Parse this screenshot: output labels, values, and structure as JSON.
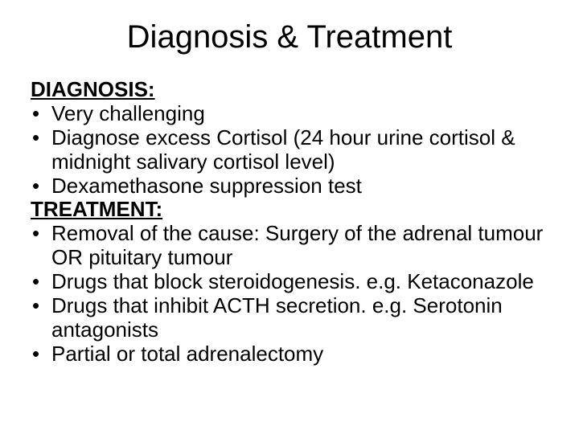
{
  "title": "Diagnosis & Treatment",
  "sections": [
    {
      "heading": "DIAGNOSIS:",
      "bullets": [
        "Very challenging",
        "Diagnose excess Cortisol (24 hour urine cortisol & midnight salivary cortisol level)",
        "Dexamethasone suppression test"
      ]
    },
    {
      "heading": "TREATMENT:",
      "bullets": [
        "Removal of the cause: Surgery of the adrenal tumour OR pituitary tumour",
        "Drugs that block steroidogenesis. e.g. Ketaconazole",
        "Drugs that inhibit ACTH secretion. e.g. Serotonin antagonists",
        "Partial or total adrenalectomy"
      ]
    }
  ],
  "colors": {
    "background": "#ffffff",
    "text": "#000000"
  },
  "typography": {
    "title_fontsize": 40,
    "body_fontsize": 26,
    "font_family": "Arial"
  }
}
